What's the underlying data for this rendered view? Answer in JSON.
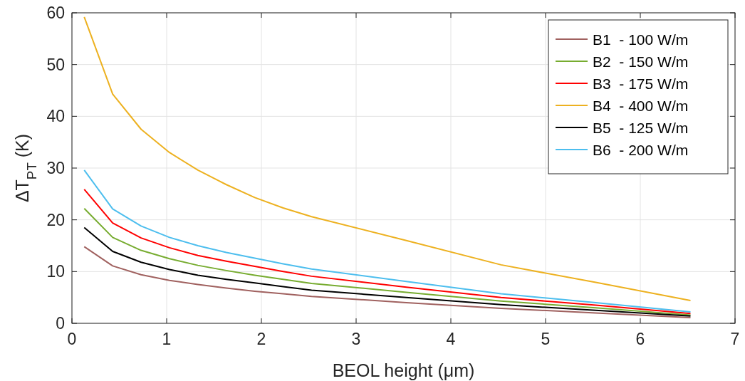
{
  "chart_data": {
    "type": "line",
    "xlabel": "BEOL height (μm)",
    "ylabel": "ΔT$_{PT}$ (K)",
    "x": [
      0.13,
      0.43,
      0.73,
      1.03,
      1.33,
      1.63,
      1.93,
      2.23,
      2.53,
      3.53,
      4.53,
      5.53,
      6.53
    ],
    "series": [
      {
        "name": "B1  - 100 W/m",
        "color": "#a0615f",
        "values": [
          14.8,
          11.1,
          9.4,
          8.3,
          7.5,
          6.8,
          6.2,
          5.7,
          5.2,
          4.0,
          2.9,
          2.0,
          1.1
        ]
      },
      {
        "name": "B2  - 150 W/m",
        "color": "#77ac30",
        "values": [
          22.2,
          16.6,
          14.1,
          12.5,
          11.2,
          10.2,
          9.3,
          8.5,
          7.7,
          6.0,
          4.3,
          3.0,
          1.6
        ]
      },
      {
        "name": "B3  - 175 W/m",
        "color": "#ff0000",
        "values": [
          25.9,
          19.4,
          16.5,
          14.6,
          13.1,
          12.0,
          11.0,
          10.0,
          9.1,
          7.0,
          5.0,
          3.5,
          1.9
        ]
      },
      {
        "name": "B4  - 400 W/m",
        "color": "#edb120",
        "values": [
          59.2,
          44.3,
          37.5,
          33.0,
          29.6,
          26.8,
          24.3,
          22.3,
          20.6,
          16.0,
          11.3,
          7.9,
          4.4
        ]
      },
      {
        "name": "B5  - 125 W/m",
        "color": "#000000",
        "values": [
          18.5,
          13.9,
          11.8,
          10.4,
          9.3,
          8.5,
          7.8,
          7.1,
          6.4,
          5.0,
          3.6,
          2.5,
          1.4
        ]
      },
      {
        "name": "B6  - 200 W/m",
        "color": "#4dbeee",
        "values": [
          29.6,
          22.1,
          18.8,
          16.6,
          15.0,
          13.7,
          12.6,
          11.5,
          10.5,
          8.1,
          5.7,
          4.0,
          2.2
        ]
      }
    ],
    "xlim": [
      0,
      7
    ],
    "xticks": [
      0,
      1,
      2,
      3,
      4,
      5,
      6,
      7
    ],
    "ylim": [
      0,
      60
    ],
    "yticks": [
      0,
      10,
      20,
      30,
      40,
      50,
      60
    ],
    "grid": true,
    "legend": "top right",
    "marker": "none",
    "line_style": "solid"
  }
}
